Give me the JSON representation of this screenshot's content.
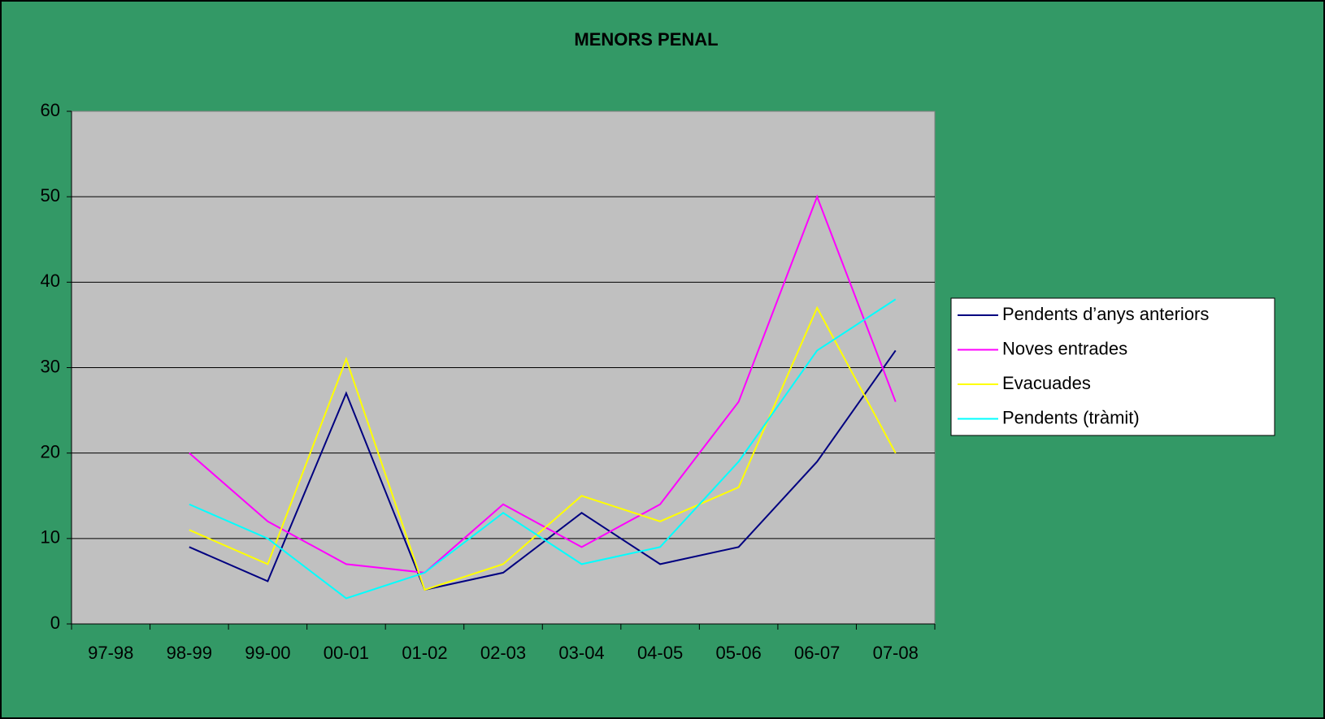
{
  "chart_data": {
    "type": "line",
    "title": "MENORS PENAL",
    "categories": [
      "97-98",
      "98-99",
      "99-00",
      "00-01",
      "01-02",
      "02-03",
      "03-04",
      "04-05",
      "05-06",
      "06-07",
      "07-08"
    ],
    "series": [
      {
        "name": "Pendents d’anys anteriors",
        "color": "#000080",
        "values": [
          null,
          9,
          5,
          27,
          4,
          6,
          13,
          7,
          9,
          19,
          32
        ]
      },
      {
        "name": "Noves entrades",
        "color": "#ff00ff",
        "values": [
          null,
          20,
          12,
          7,
          6,
          14,
          9,
          14,
          26,
          50,
          26
        ]
      },
      {
        "name": "Evacuades",
        "color": "#ffff00",
        "values": [
          null,
          11,
          7,
          31,
          4,
          7,
          15,
          12,
          16,
          37,
          20
        ]
      },
      {
        "name": "Pendents (tràmit)",
        "color": "#00ffff",
        "values": [
          null,
          14,
          10,
          3,
          6,
          13,
          7,
          9,
          19,
          32,
          38
        ]
      }
    ],
    "ylim": [
      0,
      60
    ],
    "yticks": [
      0,
      10,
      20,
      30,
      40,
      50,
      60
    ],
    "grid": true,
    "legend": "right"
  }
}
